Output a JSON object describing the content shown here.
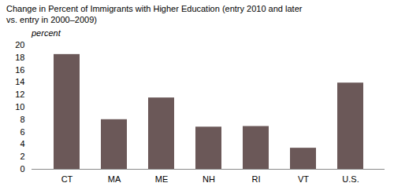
{
  "chart_data": {
    "type": "bar",
    "title": "Change in Percent of Immigrants with Higher Education (entry 2010 and later\nvs. entry in 2000–2009)",
    "ylabel": "percent",
    "categories": [
      "CT",
      "MA",
      "ME",
      "NH",
      "RI",
      "VT",
      "U.S."
    ],
    "values": [
      18.5,
      8.0,
      11.5,
      6.8,
      6.9,
      3.4,
      13.9
    ],
    "color": "#6b5858",
    "ylim": [
      0,
      20
    ],
    "yticks": [
      0,
      2,
      4,
      6,
      8,
      10,
      12,
      14,
      16,
      18,
      20
    ],
    "grid": false
  }
}
